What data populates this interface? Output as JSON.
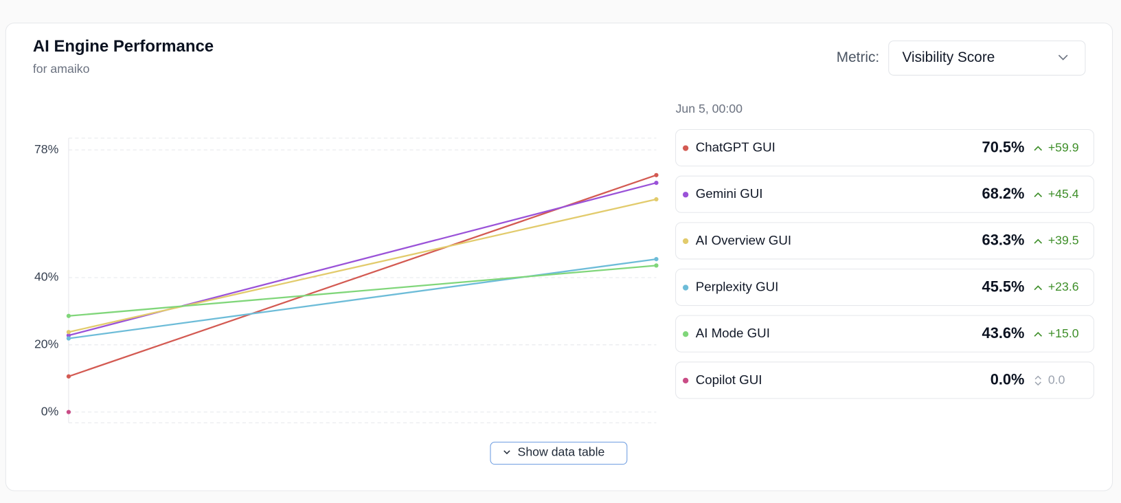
{
  "title": "AI Engine Performance",
  "subtitle": "for amaiko",
  "metric_label": "Metric:",
  "metric_value": "Visibility Score",
  "button": "Show data table",
  "chart_data": {
    "type": "line",
    "categories": [
      null,
      null
    ],
    "series": [
      {
        "name": "ChatGPT GUI",
        "color": "#d35a52",
        "values": [
          10.6,
          70.5
        ]
      },
      {
        "name": "Gemini GUI",
        "color": "#9a52d8",
        "values": [
          22.8,
          68.2
        ]
      },
      {
        "name": "AI Overview GUI",
        "color": "#e2cb6c",
        "values": [
          23.8,
          63.3
        ]
      },
      {
        "name": "Perplexity GUI",
        "color": "#6dbcd8",
        "values": [
          21.9,
          45.5
        ]
      },
      {
        "name": "AI Mode GUI",
        "color": "#80d67a",
        "values": [
          28.6,
          43.6
        ]
      },
      {
        "name": "Copilot GUI",
        "color": "#c94c86",
        "values": [
          0,
          null
        ]
      }
    ],
    "ylim": [
      -3.2,
      81.5
    ],
    "yticks": [
      {
        "value": 0,
        "label": "0%"
      },
      {
        "value": 20,
        "label": "20%"
      },
      {
        "value": 40,
        "label": "40%"
      },
      {
        "value": 78,
        "label": "78%"
      }
    ],
    "grid": true
  },
  "panel": {
    "date": "Jun 5, 00:00",
    "rows": [
      {
        "value": "70.5%",
        "change": "+59.9",
        "trend": "up"
      },
      {
        "value": "68.2%",
        "change": "+45.4",
        "trend": "up"
      },
      {
        "value": "63.3%",
        "change": "+39.5",
        "trend": "up"
      },
      {
        "value": "45.5%",
        "change": "+23.6",
        "trend": "up"
      },
      {
        "value": "43.6%",
        "change": "+15.0",
        "trend": "up"
      },
      {
        "value": "0.0%",
        "change": "0.0",
        "trend": "flat"
      }
    ]
  }
}
